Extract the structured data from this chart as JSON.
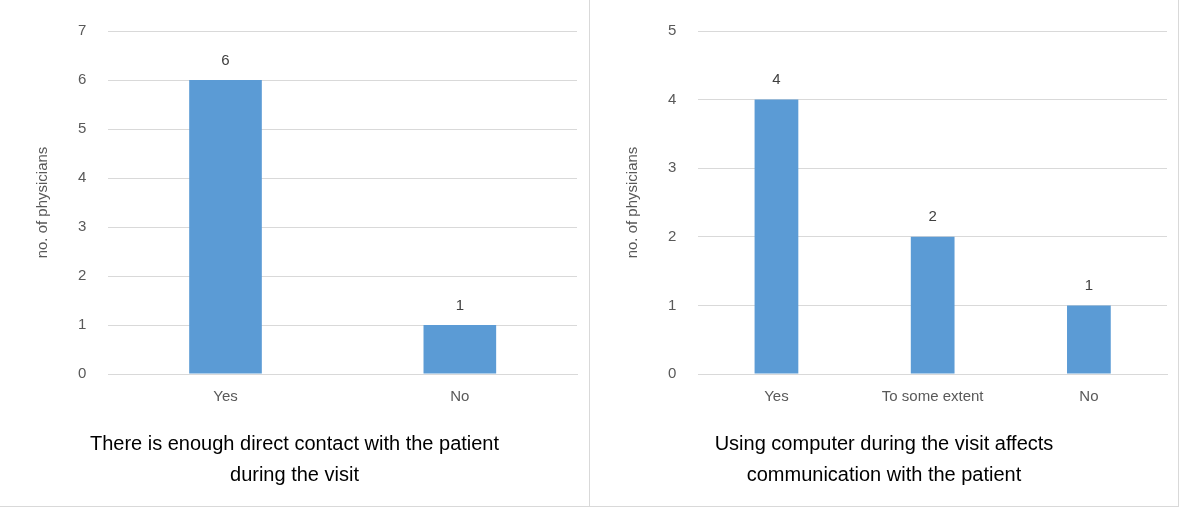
{
  "chart_data": [
    {
      "type": "bar",
      "title": "There is enough direct contact with the patient during the visit",
      "ylabel": "no. of physicians",
      "categories": [
        "Yes",
        "No"
      ],
      "series": [
        {
          "color": "#5b9bd5",
          "values": [
            6,
            1
          ]
        }
      ],
      "ylim": [
        0,
        7
      ],
      "yticks": [
        0,
        1,
        2,
        3,
        4,
        5,
        6,
        7
      ],
      "grid": "y",
      "legend": false,
      "data_labels": true
    },
    {
      "type": "bar",
      "title": "Using computer during the visit affects communication with the patient",
      "ylabel": "no. of physicians",
      "categories": [
        "Yes",
        "To some extent",
        "No"
      ],
      "series": [
        {
          "color": "#5b9bd5",
          "values": [
            4,
            2,
            1
          ]
        }
      ],
      "ylim": [
        0,
        5
      ],
      "yticks": [
        0,
        1,
        2,
        3,
        4,
        5
      ],
      "grid": "y",
      "legend": false,
      "data_labels": true
    }
  ]
}
